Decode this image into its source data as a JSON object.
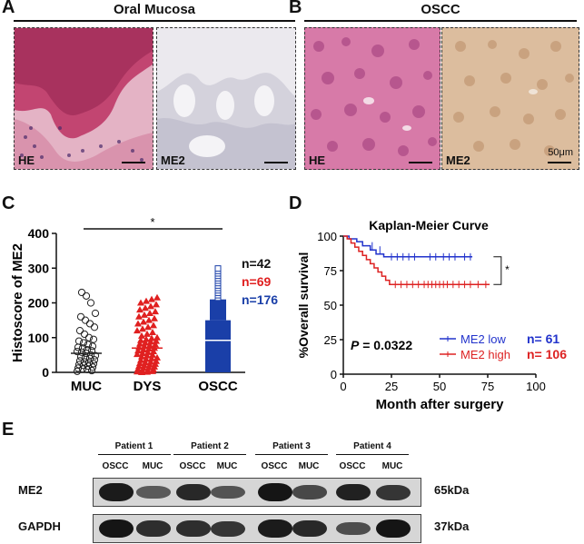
{
  "panels": {
    "A": {
      "label": "A",
      "title": "Oral Mucosa",
      "images": [
        {
          "label": "HE"
        },
        {
          "label": "ME2"
        }
      ]
    },
    "B": {
      "label": "B",
      "title": "OSCC",
      "images": [
        {
          "label": "HE"
        },
        {
          "label": "ME2"
        }
      ],
      "scale": "50μm"
    },
    "C": {
      "label": "C",
      "significance": "*"
    },
    "D": {
      "label": "D",
      "significance": "*",
      "pvalue_prefix": "P",
      "pvalue_rest": " = 0.0322"
    },
    "E": {
      "label": "E"
    }
  },
  "colors": {
    "muc": "#222222",
    "dys": "#e02020",
    "oscc": "#1a3fa8",
    "low": "#2233cc",
    "high": "#dd2222"
  },
  "chart_data": [
    {
      "type": "scatter",
      "ylabel": "Histoscore of ME2",
      "categories": [
        "MUC",
        "DYS",
        "OSCC"
      ],
      "ylim": [
        0,
        400
      ],
      "yticks": [
        0,
        100,
        200,
        300,
        400
      ],
      "series": [
        {
          "name": "MUC",
          "n_label": "n=42",
          "marker": "circle-open",
          "mean": 55,
          "points": [
            3,
            5,
            8,
            10,
            12,
            15,
            18,
            20,
            22,
            25,
            28,
            30,
            33,
            36,
            40,
            42,
            45,
            48,
            50,
            55,
            58,
            60,
            62,
            65,
            70,
            72,
            75,
            80,
            85,
            90,
            95,
            100,
            110,
            120,
            130,
            140,
            150,
            160,
            170,
            200,
            220,
            230
          ]
        },
        {
          "name": "DYS",
          "n_label": "n=69",
          "marker": "triangle",
          "mean": 70,
          "points": [
            2,
            4,
            6,
            8,
            10,
            12,
            14,
            16,
            18,
            20,
            22,
            24,
            26,
            28,
            30,
            32,
            35,
            38,
            40,
            42,
            45,
            48,
            50,
            52,
            55,
            58,
            60,
            62,
            65,
            68,
            70,
            72,
            75,
            78,
            80,
            82,
            85,
            88,
            90,
            92,
            95,
            98,
            100,
            105,
            110,
            115,
            120,
            125,
            130,
            135,
            140,
            145,
            150,
            155,
            160,
            165,
            170,
            175,
            180,
            185,
            190,
            195,
            200,
            205,
            210,
            215,
            0,
            1,
            3
          ]
        },
        {
          "name": "OSCC",
          "n_label": "n=176",
          "marker": "square",
          "mean": 92,
          "points": []
        }
      ]
    },
    {
      "type": "line",
      "title": "Kaplan-Meier Curve",
      "xlabel": "Month after surgery",
      "ylabel": "%Overall survival",
      "xlim": [
        0,
        100
      ],
      "ylim": [
        0,
        100
      ],
      "xticks": [
        0,
        25,
        50,
        75,
        100
      ],
      "yticks": [
        0,
        25,
        50,
        75,
        100
      ],
      "series": [
        {
          "name": "ME2 low",
          "n_label": "n= 61",
          "steps": [
            [
              0,
              100
            ],
            [
              3,
              100
            ],
            [
              3,
              98
            ],
            [
              7,
              98
            ],
            [
              7,
              96
            ],
            [
              10,
              96
            ],
            [
              10,
              93
            ],
            [
              14,
              93
            ],
            [
              14,
              90
            ],
            [
              17,
              90
            ],
            [
              17,
              87
            ],
            [
              21,
              87
            ],
            [
              21,
              85
            ],
            [
              67,
              85
            ]
          ],
          "censors": [
            [
              15,
              93
            ],
            [
              19,
              90
            ],
            [
              25,
              85
            ],
            [
              28,
              85
            ],
            [
              31,
              85
            ],
            [
              34,
              85
            ],
            [
              37,
              85
            ],
            [
              45,
              85
            ],
            [
              48,
              85
            ],
            [
              52,
              85
            ],
            [
              55,
              85
            ],
            [
              58,
              85
            ],
            [
              63,
              85
            ],
            [
              66,
              85
            ]
          ]
        },
        {
          "name": "ME2 high",
          "n_label": "n= 106",
          "steps": [
            [
              0,
              100
            ],
            [
              2,
              100
            ],
            [
              2,
              98
            ],
            [
              4,
              98
            ],
            [
              4,
              95
            ],
            [
              6,
              95
            ],
            [
              6,
              92
            ],
            [
              8,
              92
            ],
            [
              8,
              89
            ],
            [
              10,
              89
            ],
            [
              10,
              86
            ],
            [
              12,
              86
            ],
            [
              12,
              83
            ],
            [
              14,
              83
            ],
            [
              14,
              80
            ],
            [
              16,
              80
            ],
            [
              16,
              77
            ],
            [
              18,
              77
            ],
            [
              18,
              74
            ],
            [
              20,
              74
            ],
            [
              20,
              71
            ],
            [
              22,
              71
            ],
            [
              22,
              68
            ],
            [
              24,
              68
            ],
            [
              24,
              65
            ],
            [
              76,
              65
            ]
          ],
          "censors": [
            [
              27,
              65
            ],
            [
              30,
              65
            ],
            [
              33,
              65
            ],
            [
              36,
              65
            ],
            [
              39,
              65
            ],
            [
              42,
              65
            ],
            [
              44,
              65
            ],
            [
              46,
              65
            ],
            [
              48,
              65
            ],
            [
              50,
              65
            ],
            [
              52,
              65
            ],
            [
              54,
              65
            ],
            [
              57,
              65
            ],
            [
              60,
              65
            ],
            [
              63,
              65
            ],
            [
              66,
              65
            ],
            [
              70,
              65
            ],
            [
              74,
              65
            ]
          ]
        }
      ]
    }
  ],
  "western": {
    "patients": [
      "Patient 1",
      "Patient 2",
      "Patient 3",
      "Patient 4"
    ],
    "lanes": [
      "OSCC",
      "MUC",
      "OSCC",
      "MUC",
      "OSCC",
      "MUC",
      "OSCC",
      "MUC"
    ],
    "rows": [
      {
        "name": "ME2",
        "kda": "65kDa",
        "intensity": [
          0.95,
          0.45,
          0.85,
          0.5,
          1.0,
          0.6,
          0.9,
          0.75
        ]
      },
      {
        "name": "GAPDH",
        "kda": "37kDa",
        "intensity": [
          1.0,
          0.8,
          0.8,
          0.75,
          0.95,
          0.85,
          0.55,
          1.0
        ]
      }
    ]
  }
}
